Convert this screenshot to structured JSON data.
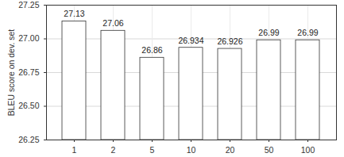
{
  "chart_data": {
    "type": "bar",
    "y_label": "BLEU score on dev. set",
    "categories": [
      "1",
      "2",
      "5",
      "10",
      "20",
      "50",
      "100"
    ],
    "values": [
      27.13,
      27.06,
      26.86,
      26.934,
      26.926,
      26.99,
      26.99
    ],
    "color": "#ffffff",
    "ylim": [
      26.25,
      27.25
    ],
    "yticks": [
      26.25,
      {
        "value": 26.5,
        "label": "26.50"
      },
      26.75,
      {
        "value": 27,
        "label": "27.00"
      },
      27.25
    ],
    "grid": true,
    "data_labels": true
  }
}
